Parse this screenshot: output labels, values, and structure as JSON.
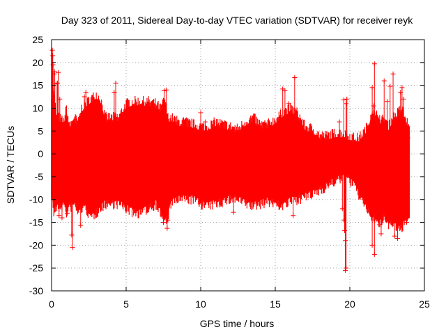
{
  "chart_data": {
    "type": "scatter",
    "title": "Day 323 of 2011, Sidereal Day-to-day VTEC variation (SDTVAR) for receiver reyk",
    "xlabel": "GPS time / hours",
    "ylabel": "SDTVAR / TECUs",
    "xlim": [
      0,
      25
    ],
    "ylim": [
      -30,
      25
    ],
    "xticks": [
      0,
      5,
      10,
      15,
      20,
      25
    ],
    "yticks": [
      -30,
      -25,
      -20,
      -15,
      -10,
      -5,
      0,
      5,
      10,
      15,
      20,
      25
    ],
    "grid": true,
    "series_color": "#ff0000",
    "marker": "plus",
    "series": [
      {
        "name": "SDTVAR",
        "envelope": {
          "hours": [
            0.0,
            0.15,
            0.3,
            0.5,
            0.8,
            1.0,
            1.2,
            1.5,
            1.8,
            2.0,
            2.3,
            2.6,
            3.0,
            3.3,
            3.6,
            4.0,
            4.5,
            5.0,
            5.5,
            6.0,
            6.5,
            7.0,
            7.3,
            7.6,
            7.8,
            8.0,
            8.5,
            9.0,
            9.5,
            10.0,
            10.5,
            11.0,
            11.5,
            12.0,
            12.5,
            13.0,
            13.5,
            14.0,
            14.5,
            15.0,
            15.5,
            16.0,
            16.5,
            17.0,
            17.5,
            18.0,
            18.5,
            19.0,
            19.5,
            19.8,
            20.0,
            20.3,
            20.6,
            21.0,
            21.3,
            21.5,
            21.7,
            21.9,
            22.1,
            22.3,
            22.6,
            22.9,
            23.2,
            23.5,
            23.8,
            24.0
          ],
          "upper": [
            12,
            13,
            8,
            7,
            6,
            9,
            5,
            7,
            6,
            9,
            10,
            11,
            12,
            11,
            7,
            7,
            7,
            10,
            10.5,
            10.5,
            10.5,
            10,
            9,
            11,
            7,
            7,
            6,
            6,
            5.5,
            5,
            5,
            6,
            5.5,
            5,
            4.5,
            6,
            7,
            5.5,
            5.5,
            6.5,
            8,
            9,
            8,
            5,
            4.5,
            3,
            3,
            3.5,
            3.5,
            3,
            3,
            2.5,
            2.5,
            4,
            6,
            9,
            7,
            8,
            6,
            7,
            5,
            7,
            8,
            9,
            6,
            6
          ],
          "lower": [
            -8,
            -12,
            -11,
            -11,
            -10,
            -12,
            -11,
            -10,
            -12,
            -11,
            -11,
            -13,
            -12,
            -11,
            -10,
            -10,
            -10,
            -11,
            -12,
            -12,
            -11,
            -10,
            -12,
            -14,
            -13,
            -10,
            -9,
            -9,
            -9,
            -10,
            -10.5,
            -10,
            -9.5,
            -9,
            -9,
            -10,
            -10.5,
            -10,
            -9.5,
            -10,
            -10.5,
            -9.5,
            -9,
            -8.5,
            -8,
            -7,
            -6,
            -5,
            -4.5,
            -4.5,
            -5,
            -6,
            -8,
            -10,
            -12,
            -14,
            -13,
            -15,
            -14,
            -13,
            -15,
            -14,
            -16,
            -15,
            -14,
            -14
          ]
        },
        "outliers": [
          [
            0.05,
            22.7
          ],
          [
            0.08,
            21.5
          ],
          [
            0.1,
            19.5
          ],
          [
            0.18,
            17.5
          ],
          [
            0.2,
            18.0
          ],
          [
            0.3,
            15.3
          ],
          [
            0.4,
            15.5
          ],
          [
            0.45,
            17.8
          ],
          [
            0.55,
            12.0
          ],
          [
            0.5,
            -13.5
          ],
          [
            0.7,
            -14.0
          ],
          [
            0.65,
            -11.0
          ],
          [
            1.05,
            -13.0
          ],
          [
            1.4,
            -20.5
          ],
          [
            1.35,
            -17.8
          ],
          [
            1.95,
            -15.7
          ],
          [
            2.2,
            12.5
          ],
          [
            2.3,
            13.5
          ],
          [
            2.05,
            -11.3
          ],
          [
            2.6,
            -13.0
          ],
          [
            4.2,
            13.5
          ],
          [
            4.3,
            15.5
          ],
          [
            7.55,
            13.8
          ],
          [
            7.7,
            14.0
          ],
          [
            7.5,
            -15.0
          ],
          [
            7.75,
            -16.3
          ],
          [
            7.8,
            -14.5
          ],
          [
            10.0,
            9.0
          ],
          [
            10.3,
            7.0
          ],
          [
            12.2,
            -12.8
          ],
          [
            15.5,
            14.2
          ],
          [
            15.65,
            13.8
          ],
          [
            15.9,
            11.0
          ],
          [
            16.3,
            16.7
          ],
          [
            16.2,
            -13.5
          ],
          [
            19.3,
            7.0
          ],
          [
            19.6,
            11.8
          ],
          [
            19.8,
            12.0
          ],
          [
            19.75,
            11.0
          ],
          [
            19.5,
            -12.0
          ],
          [
            19.6,
            -14.5
          ],
          [
            19.65,
            -16.8
          ],
          [
            19.7,
            -19.0
          ],
          [
            19.75,
            -25.0
          ],
          [
            19.7,
            -25.5
          ],
          [
            21.65,
            19.7
          ],
          [
            21.5,
            14.5
          ],
          [
            21.6,
            10.5
          ],
          [
            21.5,
            -20.0
          ],
          [
            21.65,
            -22.0
          ],
          [
            22.1,
            -17.5
          ],
          [
            22.3,
            16.0
          ],
          [
            22.0,
            -15.5
          ],
          [
            22.5,
            11.5
          ],
          [
            22.7,
            14.8
          ],
          [
            22.9,
            17.5
          ],
          [
            23.0,
            -18.0
          ],
          [
            23.2,
            -18.5
          ],
          [
            23.4,
            13.5
          ],
          [
            23.5,
            14.5
          ],
          [
            23.6,
            12.0
          ],
          [
            23.7,
            -13.8
          ],
          [
            23.8,
            -15.0
          ],
          [
            23.9,
            3.5
          ]
        ]
      }
    ]
  }
}
